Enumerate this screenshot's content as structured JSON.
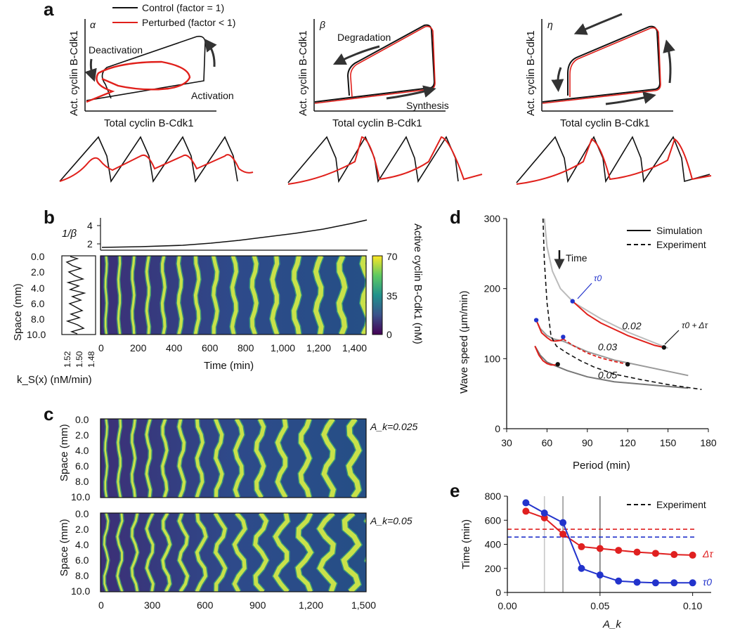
{
  "colors": {
    "control": "#111111",
    "perturbed": "#e0201b",
    "tau0": "#2233cc",
    "dtau": "#e02020",
    "gray_light": "#bbbbbb",
    "gray_mid": "#999999",
    "gray_dark": "#777777"
  },
  "panel_a": {
    "label": "a",
    "legend": {
      "control": "Control (factor = 1)",
      "perturbed": "Perturbed (factor < 1)"
    },
    "ylabel": "Act. cyclin B-Cdk1",
    "xlabel": "Total cyclin B-Cdk1",
    "subplots": [
      {
        "param": "α",
        "labels": [
          "Deactivation",
          "Activation"
        ]
      },
      {
        "param": "β",
        "labels": [
          "Degradation",
          "Synthesis"
        ]
      },
      {
        "param": "η",
        "labels": []
      }
    ]
  },
  "panel_b": {
    "label": "b",
    "top_ylabel": "1/β",
    "top_yticks": [
      "4",
      "2"
    ],
    "ylabel": "Space (mm)",
    "yticks": [
      "0.0",
      "2.0",
      "4.0",
      "6.0",
      "8.0",
      "10.0"
    ],
    "left_xticks": [
      "1.52",
      "1.50",
      "1.48"
    ],
    "left_xlabel": "k_S(x) (nM/min)",
    "xlabel": "Time (min)",
    "xticks": [
      "0",
      "200",
      "400",
      "600",
      "800",
      "1,000",
      "1,200",
      "1,400"
    ],
    "colorbar_label": "Active cyclin B-Cdk1 (nM)",
    "colorbar_ticks": [
      "70",
      "35",
      "0"
    ]
  },
  "panel_c": {
    "label": "c",
    "ylabel": "Space (mm)",
    "yticks": [
      "0.0",
      "2.0",
      "4.0",
      "6.0",
      "8.0",
      "10.0"
    ],
    "xticks": [
      "0",
      "300",
      "600",
      "900",
      "1,200",
      "1,500"
    ],
    "annotations": [
      "A_k=0.025",
      "A_k=0.05"
    ]
  },
  "panel_d": {
    "label": "d",
    "legend": {
      "simulation": "Simulation",
      "experiment": "Experiment"
    },
    "time_label": "Time",
    "tau0_label": "τ0",
    "tau_dtau_label": "τ0 + Δτ",
    "curve_labels": [
      "0.02",
      "0.03",
      "0.05"
    ]
  },
  "panel_e": {
    "label": "e",
    "legend_experiment": "Experiment",
    "series_labels": {
      "dtau": "Δτ",
      "tau0": "τ0"
    },
    "xlabel": "A_k"
  },
  "chart_data": [
    {
      "type": "line",
      "panel": "d",
      "xlabel": "Period (min)",
      "ylabel": "Wave speed (μm/min)",
      "xlim": [
        30,
        180
      ],
      "ylim": [
        0,
        300
      ],
      "xticks": [
        "30",
        "60",
        "90",
        "120",
        "150",
        "180"
      ],
      "yticks": [
        "0",
        "100",
        "200",
        "300"
      ],
      "series": [
        {
          "name": "Simulation",
          "style": "gray-light",
          "x": [
            58,
            60,
            64,
            70,
            80,
            100,
            120,
            150
          ],
          "y": [
            300,
            260,
            225,
            200,
            180,
            157,
            138,
            115
          ]
        },
        {
          "name": "Simulation",
          "style": "gray-mid",
          "x": [
            52,
            55,
            60,
            65,
            72,
            90,
            110,
            140,
            165
          ],
          "y": [
            155,
            143,
            133,
            128,
            125,
            110,
            98,
            86,
            76
          ]
        },
        {
          "name": "Simulation",
          "style": "gray-dark",
          "x": [
            51,
            55,
            60,
            66,
            75,
            90,
            110,
            140,
            165
          ],
          "y": [
            118,
            105,
            95,
            90,
            83,
            74,
            67,
            62,
            58
          ]
        },
        {
          "name": "",
          "style": "red-0.02",
          "x": [
            79,
            90,
            100,
            110,
            120,
            130,
            140,
            147
          ],
          "y": [
            182,
            163,
            151,
            142,
            133,
            126,
            119,
            116
          ]
        },
        {
          "name": "",
          "style": "red-0.03",
          "x": [
            52,
            56,
            60,
            63,
            66,
            70,
            72
          ],
          "y": [
            155,
            137,
            130,
            126,
            125,
            126,
            128
          ]
        },
        {
          "name": "",
          "style": "red-dashed-0.03",
          "x": [
            72,
            80,
            90,
            100,
            110,
            120
          ],
          "y": [
            128,
            118,
            108,
            101,
            96,
            92
          ]
        },
        {
          "name": "",
          "style": "red-0.05",
          "x": [
            51,
            54,
            57,
            60,
            63,
            66,
            68
          ],
          "y": [
            118,
            105,
            97,
            93,
            91,
            91,
            92
          ]
        },
        {
          "name": "Experiment",
          "style": "dashed",
          "x": [
            57,
            58,
            60,
            63,
            67,
            75,
            85,
            95,
            110,
            130,
            150,
            175
          ],
          "y": [
            300,
            240,
            180,
            132,
            118,
            108,
            97,
            88,
            78,
            70,
            63,
            56
          ]
        }
      ],
      "points": [
        {
          "x": 52,
          "y": 155,
          "color": "#2233cc"
        },
        {
          "x": 72,
          "y": 131,
          "color": "#2233cc"
        },
        {
          "x": 79,
          "y": 182,
          "color": "#2233cc"
        },
        {
          "x": 68,
          "y": 92,
          "color": "#111111"
        },
        {
          "x": 120,
          "y": 92,
          "color": "#111111"
        },
        {
          "x": 147,
          "y": 116,
          "color": "#111111"
        }
      ]
    },
    {
      "type": "line",
      "panel": "e",
      "ylabel": "Time (min)",
      "xlim": [
        0,
        0.11
      ],
      "ylim": [
        0,
        800
      ],
      "xticks": [
        "0.00",
        "0.05",
        "0.10"
      ],
      "yticks": [
        "0",
        "200",
        "400",
        "600",
        "800"
      ],
      "x": [
        0.01,
        0.02,
        0.03,
        0.04,
        0.05,
        0.06,
        0.07,
        0.08,
        0.09,
        0.1
      ],
      "series": [
        {
          "name": "Δτ",
          "color": "#e02020",
          "values": [
            675,
            620,
            485,
            380,
            365,
            350,
            335,
            325,
            315,
            310
          ]
        },
        {
          "name": "τ0",
          "color": "#2233cc",
          "values": [
            745,
            660,
            580,
            200,
            145,
            95,
            85,
            80,
            80,
            80
          ]
        }
      ],
      "experiment_lines": [
        {
          "color": "#e02020",
          "y": 525
        },
        {
          "color": "#2233cc",
          "y": 460
        }
      ],
      "vlines": [
        {
          "x": 0.02,
          "color": "#c8c8c8"
        },
        {
          "x": 0.03,
          "color": "#999999"
        },
        {
          "x": 0.05,
          "color": "#777777"
        }
      ]
    }
  ]
}
